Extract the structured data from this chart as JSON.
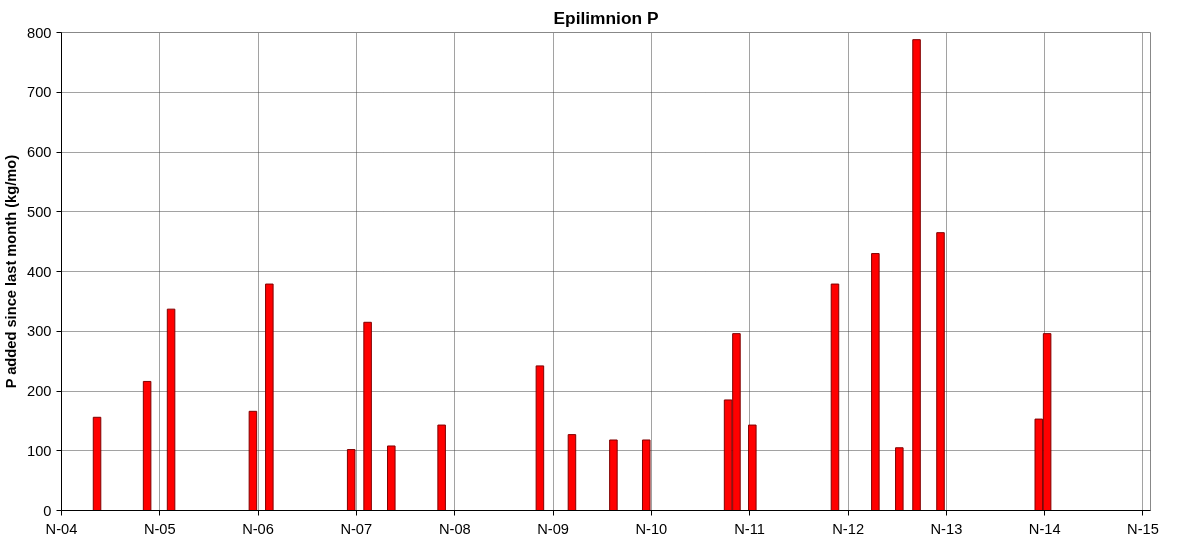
{
  "chart_data": {
    "type": "bar",
    "title": "Epilimnion P",
    "ylabel": "P added since last month (kg/mo)",
    "x": [
      "2005-03-13",
      "2005-09-15",
      "2005-12-13",
      "2006-10-13",
      "2006-12-13",
      "2007-10-13",
      "2007-12-13",
      "2008-03-10",
      "2008-09-13",
      "2009-09-13",
      "2010-01-10",
      "2010-06-13",
      "2010-10-13",
      "2011-08-13",
      "2011-09-13",
      "2011-11-11",
      "2012-09-13",
      "2013-02-10",
      "2013-05-10",
      "2013-07-13",
      "2013-10-10",
      "2014-10-10",
      "2014-11-10"
    ],
    "values": [
      156,
      216,
      337,
      166,
      379,
      102,
      315,
      108,
      143,
      242,
      127,
      118,
      118,
      185,
      296,
      143,
      379,
      430,
      105,
      788,
      465,
      153,
      296
    ],
    "color": "#ff0000",
    "xlim": [
      "2004-11-01",
      "2015-11-29"
    ],
    "xticks": [
      {
        "value": "2004-11-01",
        "label": "N-04"
      },
      {
        "value": "2005-11-01",
        "label": "N-05"
      },
      {
        "value": "2006-11-01",
        "label": "N-06"
      },
      {
        "value": "2007-11-01",
        "label": "N-07"
      },
      {
        "value": "2008-11-01",
        "label": "N-08"
      },
      {
        "value": "2009-11-01",
        "label": "N-09"
      },
      {
        "value": "2010-11-01",
        "label": "N-10"
      },
      {
        "value": "2011-11-01",
        "label": "N-11"
      },
      {
        "value": "2012-11-01",
        "label": "N-12"
      },
      {
        "value": "2013-11-01",
        "label": "N-13"
      },
      {
        "value": "2014-11-01",
        "label": "N-14"
      },
      {
        "value": "2015-11-01",
        "label": "N-15"
      }
    ],
    "ylim": [
      0,
      800
    ],
    "yticks": [
      0,
      100,
      200,
      300,
      400,
      500,
      600,
      700,
      800
    ],
    "grid": true
  }
}
